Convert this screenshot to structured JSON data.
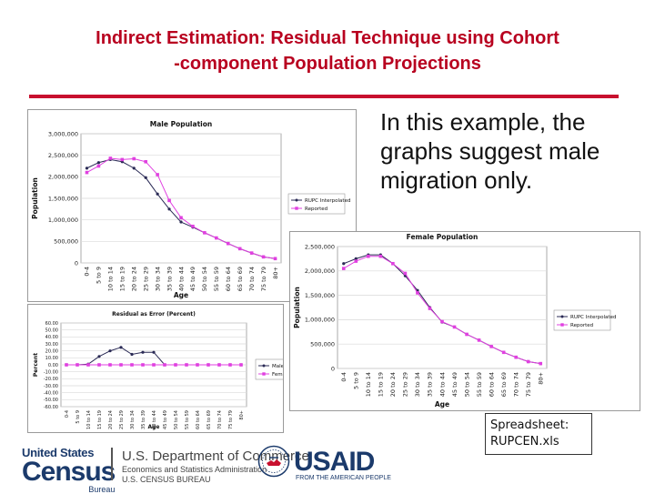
{
  "slide": {
    "title_line1": "Indirect Estimation:  Residual Technique using   Cohort",
    "title_line2": "-component Population Projections",
    "body_text": "In this example, the graphs suggest male migration only.",
    "callout_line1": "Spreadsheet:",
    "callout_line2": "RUPCEN.xls"
  },
  "colors": {
    "title": "#b8001f",
    "rupc_series": "#2a2a55",
    "reported_series": "#e040e0",
    "grid": "#d9d9d9",
    "brand_navy": "#1b3a6b"
  },
  "footer": {
    "census_united_states": "United States",
    "census_word": "Census",
    "census_bureau": "Bureau",
    "dept_line1": "U.S. Department of Commerce",
    "dept_line2": "Economics and Statistics Administration",
    "dept_line3": "U.S. CENSUS BUREAU",
    "usaid_word": "USAID",
    "usaid_tagline": "FROM THE AMERICAN PEOPLE"
  },
  "chart_data": [
    {
      "id": "male",
      "type": "line",
      "title": "Male Population",
      "xlabel": "Age",
      "ylabel": "Population",
      "ylim": [
        0,
        3000000
      ],
      "yticks": [
        0,
        500000,
        1000000,
        1500000,
        2000000,
        2500000,
        3000000
      ],
      "ytick_labels": [
        "0",
        "500,000",
        "1,000,000",
        "1,500,000",
        "2,000,000",
        "2,500,000",
        "3,000,000"
      ],
      "categories": [
        "0-4",
        "5 to 9",
        "10 to 14",
        "15 to 19",
        "20 to 24",
        "25 to 29",
        "30 to 34",
        "35 to 39",
        "40 to 44",
        "45 to 49",
        "50 to 54",
        "55 to 59",
        "60 to 64",
        "65 to 69",
        "70 to 74",
        "75 to 79",
        "80+"
      ],
      "series": [
        {
          "name": "RUPC Interpolated",
          "values": [
            2200000,
            2330000,
            2400000,
            2350000,
            2200000,
            1980000,
            1600000,
            1250000,
            950000,
            830000,
            700000,
            580000,
            450000,
            330000,
            230000,
            140000,
            100000
          ]
        },
        {
          "name": "Reported",
          "values": [
            2100000,
            2250000,
            2430000,
            2400000,
            2420000,
            2350000,
            2050000,
            1450000,
            1050000,
            850000,
            700000,
            580000,
            450000,
            330000,
            230000,
            140000,
            100000
          ]
        }
      ],
      "legend": "right"
    },
    {
      "id": "residual",
      "type": "line",
      "title": "Residual as Error (Percent)",
      "xlabel": "Age",
      "ylabel": "Percent",
      "ylim": [
        -60,
        60
      ],
      "yticks": [
        -60,
        -50,
        -40,
        -30,
        -20,
        -10,
        0,
        10,
        20,
        30,
        40,
        50,
        60
      ],
      "ytick_labels": [
        "-60.00",
        "-50.00",
        "-40.00",
        "-30.00",
        "-20.00",
        "-10.00",
        "0.00",
        "10.00",
        "20.00",
        "30.00",
        "40.00",
        "50.00",
        "60.00"
      ],
      "categories": [
        "0-4",
        "5 to 9",
        "10 to 14",
        "15 to 19",
        "20 to 24",
        "25 to 29",
        "30 to 34",
        "35 to 39",
        "40 to 44",
        "45 to 49",
        "50 to 54",
        "55 to 59",
        "60 to 64",
        "65 to 69",
        "70 to 74",
        "75 to 79",
        "80+"
      ],
      "series": [
        {
          "name": "Male",
          "values": [
            0,
            0,
            1,
            12,
            20,
            25,
            15,
            18,
            18,
            0,
            0,
            0,
            0,
            0,
            0,
            0,
            0
          ]
        },
        {
          "name": "Female",
          "values": [
            0,
            0,
            0,
            0,
            0,
            0,
            0,
            0,
            0,
            0,
            0,
            0,
            0,
            0,
            0,
            0,
            0
          ]
        }
      ],
      "legend": "right"
    },
    {
      "id": "female",
      "type": "line",
      "title": "Female Population",
      "xlabel": "Age",
      "ylabel": "Population",
      "ylim": [
        0,
        2500000
      ],
      "yticks": [
        0,
        500000,
        1000000,
        1500000,
        2000000,
        2500000
      ],
      "ytick_labels": [
        "0",
        "500,000",
        "1,000,000",
        "1,500,000",
        "2,000,000",
        "2,500,000"
      ],
      "categories": [
        "0-4",
        "5 to 9",
        "10 to 14",
        "15 to 19",
        "20 to 24",
        "25 to 29",
        "30 to 34",
        "35 to 39",
        "40 to 44",
        "45 to 49",
        "50 to 54",
        "55 to 59",
        "60 to 64",
        "65 to 69",
        "70 to 74",
        "75 to 79",
        "80+"
      ],
      "series": [
        {
          "name": "RUPC Interpolated",
          "values": [
            2150000,
            2250000,
            2330000,
            2330000,
            2150000,
            1900000,
            1600000,
            1250000,
            950000,
            850000,
            700000,
            580000,
            450000,
            330000,
            230000,
            140000,
            100000
          ]
        },
        {
          "name": "Reported",
          "values": [
            2050000,
            2200000,
            2300000,
            2300000,
            2150000,
            1950000,
            1550000,
            1230000,
            960000,
            850000,
            700000,
            580000,
            450000,
            330000,
            230000,
            140000,
            100000
          ]
        }
      ],
      "legend": "right"
    }
  ]
}
